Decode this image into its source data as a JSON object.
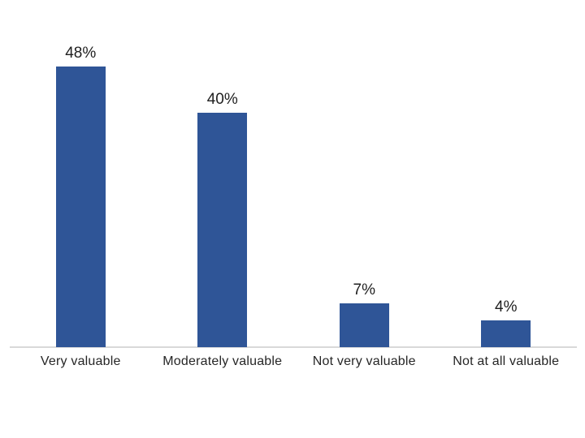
{
  "chart_data": {
    "type": "bar",
    "title": "",
    "categories": [
      "Very valuable",
      "Moderately valuable",
      "Not very valuable",
      "Not at all valuable"
    ],
    "values": [
      48,
      40,
      7,
      4
    ],
    "value_labels": [
      "48%",
      "40%",
      "7%",
      "4%"
    ],
    "xlabel": "",
    "ylabel": "",
    "ylim": [
      0,
      50
    ],
    "grid": false,
    "legend": "none",
    "y_axis_visible": false,
    "bar_color": "#2F5597",
    "axis_line_color": "#D9D9D9",
    "value_label_color": "#1F1F1F",
    "category_label_color": "#262626",
    "background_color": "#FFFFFF"
  }
}
